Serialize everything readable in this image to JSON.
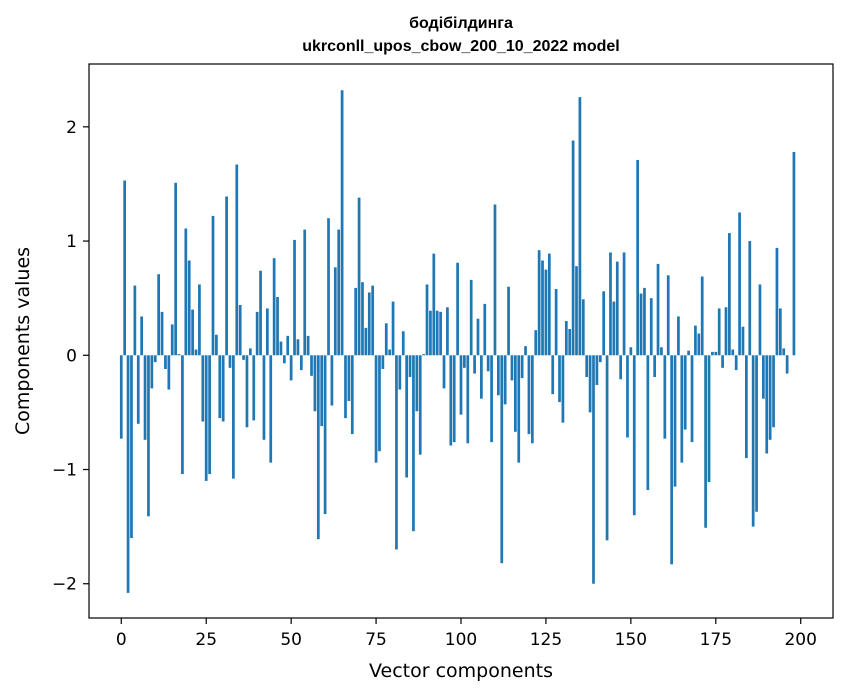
{
  "chart_data": {
    "type": "bar",
    "title": "бодібілдинга",
    "subtitle": "ukrconll_upos_cbow_200_10_2022 model",
    "xlabel": "Vector components",
    "ylabel": "Components values",
    "xlim": [
      -9.5,
      209.5
    ],
    "ylim": [
      -2.3,
      2.55
    ],
    "xticks": [
      0,
      25,
      50,
      75,
      100,
      125,
      150,
      175,
      200
    ],
    "xtick_labels": [
      "0",
      "25",
      "50",
      "75",
      "100",
      "125",
      "150",
      "175",
      "200"
    ],
    "yticks": [
      -2,
      -1,
      0,
      1,
      2
    ],
    "ytick_labels": [
      "−2",
      "−1",
      "0",
      "1",
      "2"
    ],
    "color": "#1f77b4",
    "values": [
      -0.73,
      1.53,
      -2.08,
      -1.6,
      0.61,
      -0.6,
      0.34,
      -0.74,
      -1.41,
      -0.29,
      -0.06,
      0.71,
      0.38,
      -0.12,
      -0.3,
      0.27,
      1.51,
      0.01,
      -1.04,
      1.11,
      0.83,
      0.4,
      0.05,
      0.62,
      -0.58,
      -1.1,
      -1.04,
      1.22,
      0.18,
      -0.55,
      -0.58,
      1.39,
      -0.11,
      -1.08,
      1.67,
      0.44,
      -0.04,
      -0.63,
      0.06,
      -0.57,
      0.38,
      0.74,
      -0.74,
      0.41,
      -0.94,
      0.85,
      0.51,
      0.12,
      -0.07,
      0.17,
      -0.22,
      1.01,
      0.14,
      -0.13,
      1.1,
      0.17,
      -0.18,
      -0.49,
      -1.61,
      -0.62,
      -1.39,
      1.2,
      -0.44,
      0.77,
      1.1,
      2.32,
      -0.55,
      -0.4,
      -0.69,
      0.59,
      1.38,
      0.64,
      0.24,
      0.55,
      0.61,
      -0.94,
      -0.84,
      -0.12,
      0.28,
      0.05,
      0.47,
      -1.7,
      -0.3,
      0.21,
      -1.07,
      -0.19,
      -1.54,
      -0.49,
      -0.87,
      0.01,
      0.62,
      0.39,
      0.89,
      0.39,
      0.38,
      -0.29,
      0.42,
      -0.79,
      -0.76,
      0.81,
      -0.52,
      -0.11,
      -0.77,
      0.66,
      -0.16,
      0.32,
      -0.38,
      0.45,
      -0.14,
      -0.76,
      1.32,
      -0.35,
      -1.82,
      -0.43,
      0.6,
      -0.22,
      -0.67,
      -0.94,
      -0.2,
      0.08,
      -0.69,
      -0.77,
      0.22,
      0.92,
      0.83,
      0.75,
      0.89,
      -0.34,
      0.58,
      -0.41,
      -0.59,
      0.3,
      0.23,
      1.88,
      0.78,
      2.26,
      0.49,
      -0.19,
      -0.5,
      -2.0,
      -0.26,
      -0.06,
      0.56,
      -1.62,
      0.9,
      0.47,
      0.82,
      -0.21,
      0.9,
      -0.72,
      0.07,
      -1.4,
      1.71,
      0.54,
      0.59,
      -1.18,
      0.5,
      -0.19,
      0.8,
      0.07,
      -0.73,
      0.7,
      -1.83,
      -1.15,
      0.34,
      -0.94,
      -0.65,
      0.04,
      -0.76,
      0.26,
      0.19,
      0.69,
      -1.51,
      -1.11,
      0.03,
      0.03,
      0.41,
      -0.11,
      0.42,
      1.07,
      0.05,
      -0.13,
      1.25,
      0.25,
      -0.9,
      1.0,
      -1.5,
      -1.37,
      0.62,
      -0.38,
      -0.86,
      -0.74,
      -0.63,
      0.94,
      0.41,
      0.06,
      -0.16,
      0.0,
      1.78
    ]
  }
}
